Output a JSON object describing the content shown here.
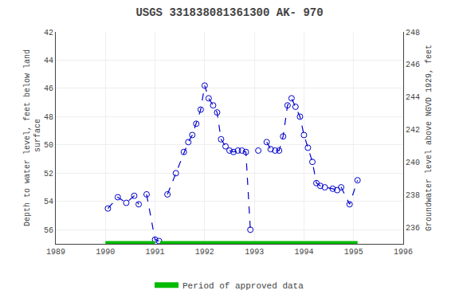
{
  "chart_data": {
    "type": "line",
    "title": "USGS 331838081361300 AK- 970",
    "y_label": "Depth to water level, feet below land\n surface",
    "y2_label": "Groundwater level above NGVD 1929, feet",
    "x": [
      1990.05,
      1990.25,
      1990.42,
      1990.58,
      1990.67,
      null,
      1990.83,
      1991.0,
      1991.08,
      null,
      1991.25,
      1991.42,
      1991.58,
      1991.67,
      1991.75,
      1991.83,
      1991.92,
      1992.0,
      1992.08,
      1992.17,
      1992.25,
      1992.33,
      1992.42,
      1992.5,
      1992.58,
      1992.67,
      1992.75,
      1992.83,
      1992.92,
      null,
      1993.08,
      null,
      1993.25,
      1993.33,
      1993.42,
      1993.5,
      1993.58,
      1993.67,
      1993.75,
      1993.83,
      1993.92,
      1994.0,
      1994.08,
      1994.17,
      1994.25,
      1994.33,
      1994.42,
      1994.58,
      1994.67,
      1994.75,
      1994.92,
      1995.08
    ],
    "series": [
      {
        "color": "#0000CC",
        "marker": "circle-open",
        "line_style": "dash",
        "values": [
          54.5,
          53.7,
          54.1,
          53.6,
          54.2,
          null,
          53.5,
          56.7,
          56.8,
          null,
          53.5,
          52.0,
          50.5,
          49.8,
          49.3,
          48.5,
          47.5,
          45.8,
          46.7,
          47.2,
          47.7,
          49.6,
          50.1,
          50.4,
          50.5,
          50.4,
          50.4,
          50.5,
          56.0,
          null,
          50.4,
          null,
          49.8,
          50.3,
          50.4,
          50.4,
          49.4,
          47.2,
          46.7,
          47.3,
          48.0,
          49.3,
          50.2,
          51.2,
          52.7,
          52.9,
          53.0,
          53.1,
          53.2,
          53.0,
          54.2,
          52.5
        ]
      },
      {
        "name": "Period of approved data",
        "color": "#00BB00",
        "type": "period_bar",
        "periods": [
          [
            1990.0,
            1991.0
          ],
          [
            1991.1,
            1995.08
          ]
        ],
        "y": 57.0
      }
    ],
    "xlim": [
      1989,
      1996
    ],
    "xticks": [
      1989,
      1990,
      1991,
      1992,
      1993,
      1994,
      1995,
      1996
    ],
    "ylim": [
      57,
      42
    ],
    "yticks": [
      42,
      44,
      46,
      48,
      50,
      52,
      54,
      56
    ],
    "y2lim": [
      235,
      248
    ],
    "y2ticks": [
      248,
      246,
      244,
      242,
      240,
      238,
      236
    ],
    "grid": true,
    "legend": "bottom"
  }
}
